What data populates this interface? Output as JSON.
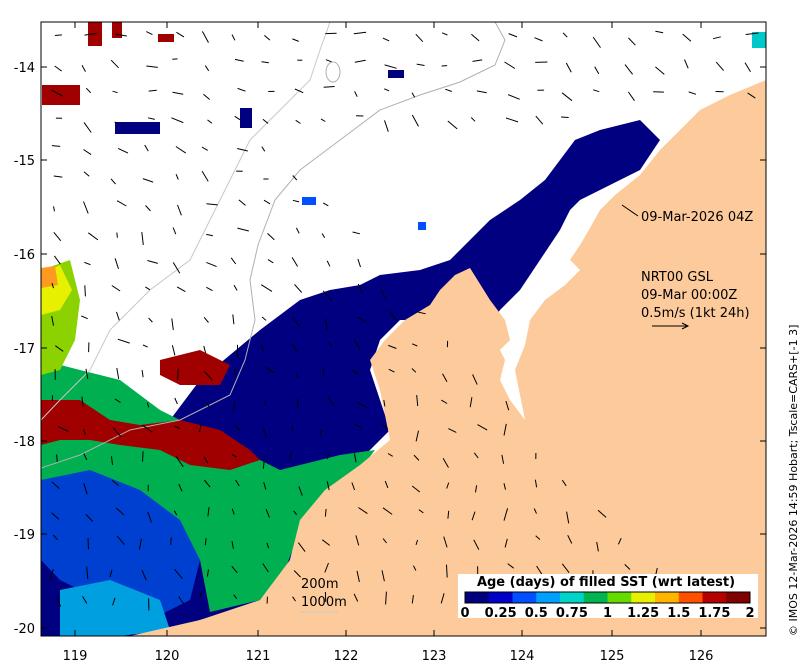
{
  "axes": {
    "x_ticks": [
      "119",
      "120",
      "121",
      "122",
      "123",
      "124",
      "125",
      "126"
    ],
    "y_ticks": [
      "-14",
      "-15",
      "-16",
      "-17",
      "-18",
      "-19",
      "-20"
    ]
  },
  "annotations": {
    "sst_timestamp": "09-Mar-2026 04Z",
    "current_source": "NRT00 GSL",
    "current_time": "09-Mar 00:00Z",
    "current_scale": "0.5m/s (1kt 24h)",
    "contour_200": "200m",
    "contour_1000": "1000m"
  },
  "colorbar": {
    "title": "Age (days) of filled SST (wrt latest)",
    "ticks": [
      "0",
      "0.25",
      "0.5",
      "0.75",
      "1",
      "1.25",
      "1.5",
      "1.75",
      "2"
    ],
    "colors": [
      "#00007f",
      "#0000c8",
      "#0050ff",
      "#00a0ff",
      "#00d4c8",
      "#00b450",
      "#64dc00",
      "#e6f000",
      "#ffb400",
      "#ff5000",
      "#b40000",
      "#7f0000"
    ]
  },
  "credit": "© IMOS 12-Mar-2026 14:59 Hobart; Tscale=CARS+[-1 3]",
  "colors": {
    "land": "#fdcb9b",
    "navy": "#000080",
    "green": "#00b050",
    "red": "#a00000",
    "blue": "#0040d0"
  }
}
